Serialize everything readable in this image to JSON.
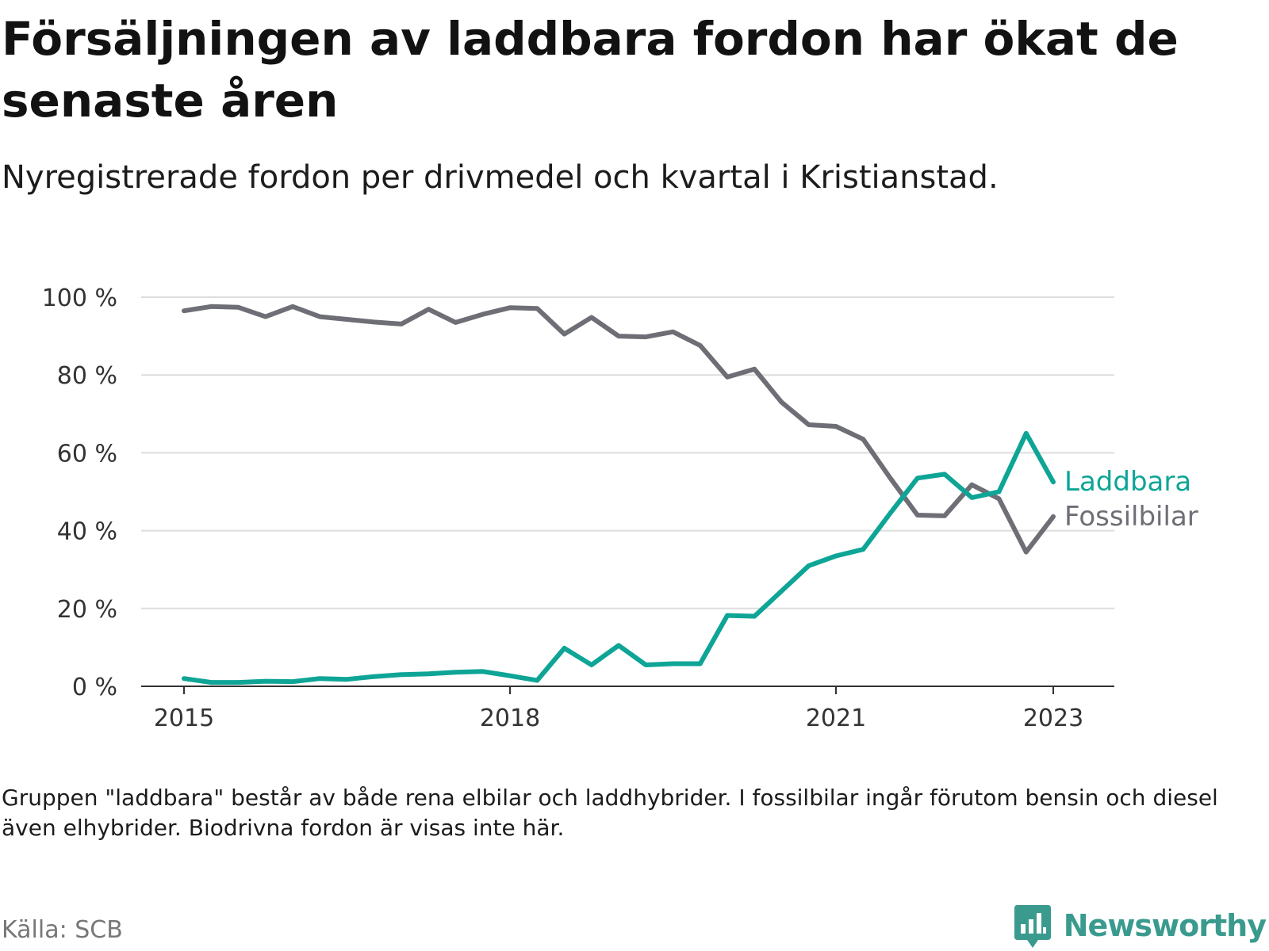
{
  "title": "Försäljningen av laddbara fordon har ökat de senaste åren",
  "subtitle": "Nyregistrerade fordon per drivmedel och kvartal i Kristianstad.",
  "note": "Gruppen \"laddbara\" består av både rena elbilar och laddhybrider. I fossilbilar ingår förutom bensin och diesel även elhybrider. Biodrivna fordon är visas inte här.",
  "source": "Källa: SCB",
  "brand": "Newsworthy",
  "colors": {
    "laddbara": "#0ea596",
    "fossil": "#6e6e76",
    "grid": "#dddddd"
  },
  "chart_data": {
    "type": "line",
    "ylim": [
      0,
      100
    ],
    "y_ticks": [
      0,
      20,
      40,
      60,
      80,
      100
    ],
    "y_tick_labels": [
      "0 %",
      "20 %",
      "40 %",
      "60 %",
      "80 %",
      "100 %"
    ],
    "x_ticks": [
      2015,
      2018,
      2021,
      2023
    ],
    "x_tick_labels": [
      "2015",
      "2018",
      "2021",
      "2023"
    ],
    "grid": "horizontal",
    "x": [
      2015.0,
      2015.25,
      2015.5,
      2015.75,
      2016.0,
      2016.25,
      2016.5,
      2016.75,
      2017.0,
      2017.25,
      2017.5,
      2017.75,
      2018.0,
      2018.25,
      2018.5,
      2018.75,
      2019.0,
      2019.25,
      2019.5,
      2019.75,
      2020.0,
      2020.25,
      2020.5,
      2020.75,
      2021.0,
      2021.25,
      2021.5,
      2021.75,
      2022.0,
      2022.25,
      2022.5,
      2022.75,
      2023.0
    ],
    "series": [
      {
        "name": "Laddbara",
        "color": "#0ea596",
        "values": [
          2.0,
          1.0,
          1.0,
          1.3,
          1.2,
          2.0,
          1.8,
          2.5,
          3.0,
          3.2,
          3.6,
          3.8,
          2.7,
          1.5,
          9.8,
          5.5,
          10.5,
          5.5,
          5.8,
          5.8,
          18.2,
          18.0,
          24.5,
          31.0,
          33.5,
          35.2,
          44.5,
          53.5,
          54.5,
          48.5,
          50.0,
          65.0,
          52.5
        ]
      },
      {
        "name": "Fossilbilar",
        "color": "#6e6e76",
        "values": [
          96.5,
          97.6,
          97.4,
          95.0,
          97.6,
          95.0,
          94.3,
          93.6,
          93.1,
          96.9,
          93.5,
          95.6,
          97.3,
          97.1,
          90.5,
          94.8,
          90.0,
          89.8,
          91.1,
          87.6,
          79.5,
          81.5,
          73.0,
          67.2,
          66.8,
          63.5,
          53.5,
          44.0,
          43.8,
          51.8,
          48.2,
          34.5,
          43.6
        ]
      }
    ]
  }
}
